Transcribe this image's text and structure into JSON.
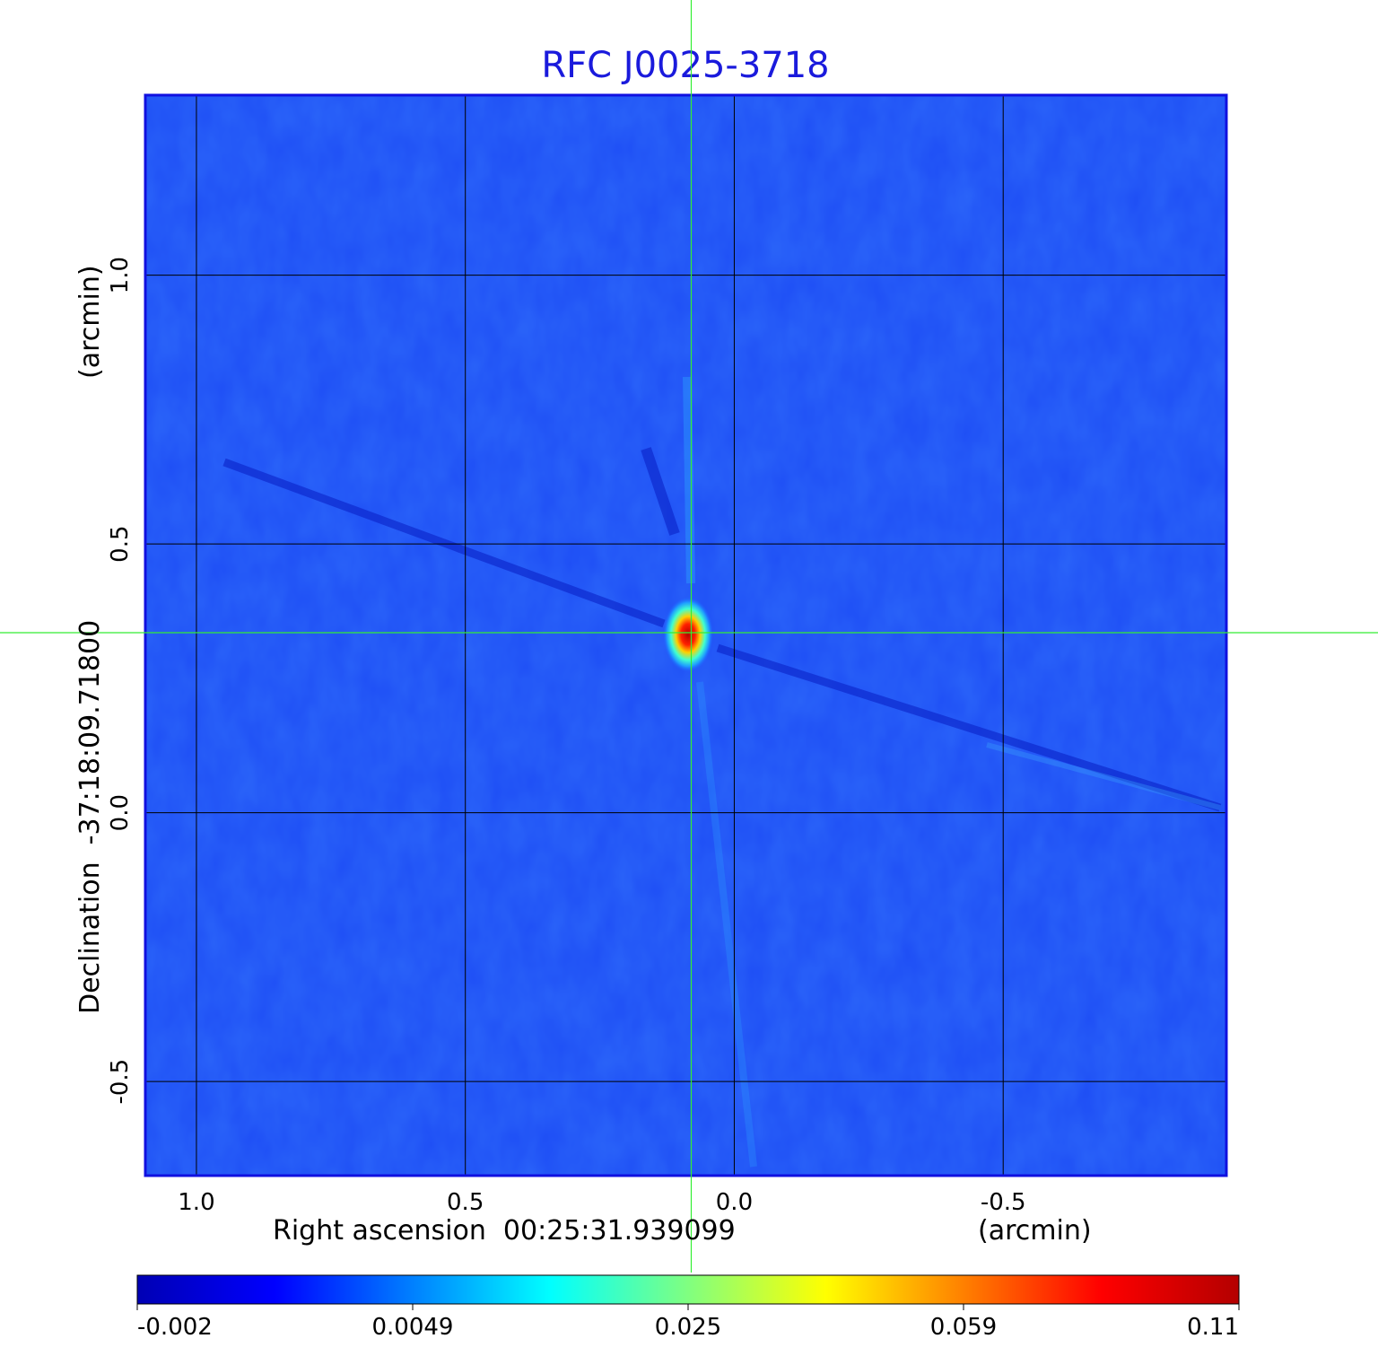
{
  "chart_data": {
    "type": "heatmap",
    "title": "RFC J0025-3718",
    "xlabel": "Right ascension  00:25:31.939099",
    "xunit": "(arcmin)",
    "ylabel_main": "Declination  -37:18:09.71800",
    "yunit": "(arcmin)",
    "x_ticks": [
      "1.0",
      "0.5",
      "0.0",
      "-0.5"
    ],
    "x_tick_values": [
      1.0,
      0.5,
      0.0,
      -0.5
    ],
    "y_ticks": [
      "1.0",
      "0.5",
      "0.0",
      "-0.5"
    ],
    "y_tick_values": [
      1.0,
      0.5,
      0.0,
      -0.5
    ],
    "xlim": [
      1.095,
      -0.915
    ],
    "ylim": [
      -0.675,
      1.335
    ],
    "grid": true,
    "crosshair": {
      "x": 0.08,
      "y": 0.335
    },
    "source_peak": {
      "x": 0.08,
      "y": 0.335,
      "value": 0.11
    },
    "colorbar": {
      "ticks": [
        "-0.002",
        "0.0049",
        "0.025",
        "0.059",
        "0.11"
      ],
      "tick_values": [
        -0.002,
        0.0049,
        0.025,
        0.059,
        0.11
      ],
      "colors": [
        "#0000b4",
        "#0000ff",
        "#0080ff",
        "#00ffff",
        "#80ff80",
        "#ffff00",
        "#ff8000",
        "#ff0000",
        "#b40000"
      ]
    }
  }
}
